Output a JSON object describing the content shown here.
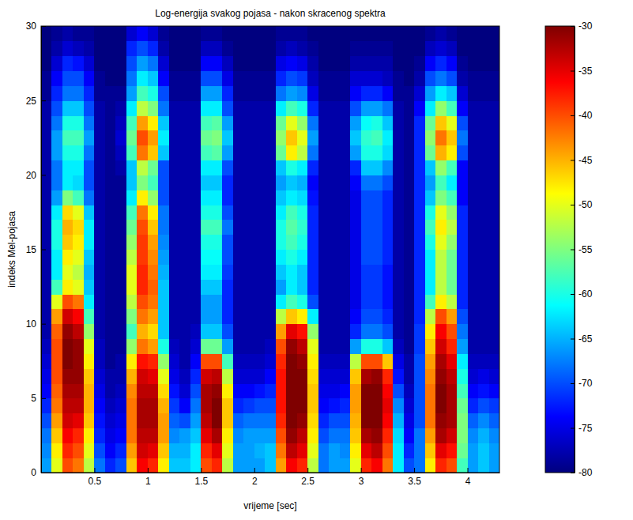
{
  "chart_data": {
    "type": "heatmap",
    "title": "Log-energija svakog pojasa - nakon skracenog spektra",
    "x_label": "vrijeme [sec]",
    "y_label": "indeks Mel-pojasa",
    "xlim": [
      0,
      4.3
    ],
    "ylim": [
      0,
      30
    ],
    "xticks": [
      0.5,
      1,
      1.5,
      2,
      2.5,
      3,
      3.5,
      4
    ],
    "yticks": [
      0,
      5,
      10,
      15,
      20,
      25,
      30
    ],
    "colorbar": {
      "range": [
        -80,
        -30
      ],
      "ticks": [
        -80,
        -75,
        -70,
        -65,
        -60,
        -55,
        -50,
        -45,
        -40,
        -35,
        -30
      ]
    },
    "x": [
      0.05,
      0.15,
      0.25,
      0.35,
      0.45,
      0.55,
      0.65,
      0.75,
      0.85,
      0.95,
      1.05,
      1.15,
      1.25,
      1.35,
      1.45,
      1.55,
      1.65,
      1.75,
      1.85,
      1.95,
      2.05,
      2.15,
      2.25,
      2.35,
      2.45,
      2.55,
      2.65,
      2.75,
      2.85,
      2.95,
      3.05,
      3.15,
      3.25,
      3.35,
      3.45,
      3.55,
      3.65,
      3.75,
      3.85,
      3.95,
      4.05,
      4.15,
      4.25
    ],
    "y": [
      0.5,
      1.5,
      2.5,
      3.5,
      4.5,
      5.5,
      6.5,
      7.5,
      8.5,
      9.5,
      10.5,
      11.5,
      12.5,
      13.5,
      14.5,
      15.5,
      16.5,
      17.5,
      18.5,
      19.5,
      20.5,
      21.5,
      22.5,
      23.5,
      24.5,
      25.5,
      26.5,
      27.5,
      28.5,
      29.5
    ],
    "z": [
      [
        -66,
        -67,
        -68,
        -70,
        -72,
        -74,
        -75,
        -76,
        -77,
        -78,
        -78,
        -78,
        -78,
        -78,
        -78,
        -78,
        -78,
        -78,
        -78,
        -78,
        -78,
        -78,
        -78,
        -78,
        -78,
        -79,
        -79,
        -80,
        -80,
        -80
      ],
      [
        -50,
        -48,
        -46,
        -44,
        -42,
        -41,
        -40,
        -40,
        -40,
        -41,
        -44,
        -50,
        -58,
        -62,
        -62,
        -60,
        -60,
        -62,
        -66,
        -68,
        -68,
        -66,
        -66,
        -68,
        -70,
        -72,
        -74,
        -76,
        -78,
        -79
      ],
      [
        -40,
        -38,
        -36,
        -34,
        -33,
        -32,
        -31,
        -30,
        -30,
        -31,
        -34,
        -40,
        -48,
        -50,
        -48,
        -46,
        -45,
        -47,
        -55,
        -62,
        -62,
        -60,
        -58,
        -60,
        -64,
        -68,
        -70,
        -72,
        -76,
        -78
      ],
      [
        -42,
        -40,
        -38,
        -35,
        -33,
        -32,
        -31,
        -31,
        -31,
        -33,
        -36,
        -42,
        -50,
        -52,
        -50,
        -48,
        -47,
        -50,
        -58,
        -63,
        -62,
        -60,
        -58,
        -60,
        -64,
        -68,
        -70,
        -73,
        -77,
        -79
      ],
      [
        -52,
        -50,
        -48,
        -46,
        -45,
        -45,
        -46,
        -48,
        -50,
        -54,
        -58,
        -62,
        -64,
        -65,
        -64,
        -62,
        -62,
        -64,
        -68,
        -70,
        -70,
        -68,
        -66,
        -68,
        -70,
        -72,
        -74,
        -76,
        -78,
        -79
      ],
      [
        -68,
        -70,
        -72,
        -73,
        -74,
        -75,
        -76,
        -77,
        -77,
        -78,
        -78,
        -78,
        -78,
        -78,
        -78,
        -78,
        -78,
        -78,
        -78,
        -78,
        -78,
        -78,
        -78,
        -78,
        -78,
        -79,
        -79,
        -80,
        -80,
        -80
      ],
      [
        -72,
        -74,
        -75,
        -76,
        -77,
        -78,
        -78,
        -79,
        -79,
        -79,
        -79,
        -79,
        -79,
        -79,
        -79,
        -79,
        -79,
        -79,
        -79,
        -79,
        -79,
        -79,
        -79,
        -79,
        -79,
        -79,
        -80,
        -80,
        -80,
        -80
      ],
      [
        -70,
        -72,
        -74,
        -75,
        -76,
        -77,
        -78,
        -78,
        -79,
        -79,
        -79,
        -79,
        -79,
        -79,
        -79,
        -79,
        -79,
        -79,
        -79,
        -79,
        -78,
        -77,
        -76,
        -77,
        -78,
        -79,
        -80,
        -80,
        -80,
        -80
      ],
      [
        -46,
        -44,
        -42,
        -42,
        -42,
        -43,
        -45,
        -48,
        -54,
        -58,
        -55,
        -52,
        -50,
        -50,
        -52,
        -54,
        -56,
        -58,
        -62,
        -64,
        -64,
        -58,
        -56,
        -58,
        -62,
        -66,
        -68,
        -70,
        -72,
        -76
      ],
      [
        -36,
        -34,
        -33,
        -32,
        -32,
        -33,
        -34,
        -37,
        -42,
        -45,
        -42,
        -40,
        -38,
        -38,
        -39,
        -39,
        -40,
        -42,
        -48,
        -55,
        -52,
        -42,
        -40,
        -44,
        -52,
        -58,
        -62,
        -66,
        -70,
        -74
      ],
      [
        -38,
        -35,
        -33,
        -32,
        -32,
        -33,
        -35,
        -38,
        -44,
        -47,
        -44,
        -42,
        -41,
        -42,
        -43,
        -44,
        -46,
        -48,
        -54,
        -58,
        -56,
        -46,
        -44,
        -48,
        -55,
        -60,
        -64,
        -68,
        -72,
        -76
      ],
      [
        -48,
        -46,
        -44,
        -44,
        -45,
        -47,
        -50,
        -54,
        -60,
        -64,
        -64,
        -64,
        -64,
        -65,
        -66,
        -67,
        -68,
        -68,
        -70,
        -70,
        -70,
        -64,
        -62,
        -64,
        -68,
        -70,
        -74,
        -76,
        -78,
        -79
      ],
      [
        -64,
        -65,
        -67,
        -69,
        -71,
        -73,
        -75,
        -76,
        -77,
        -78,
        -78,
        -78,
        -78,
        -78,
        -78,
        -78,
        -78,
        -78,
        -78,
        -78,
        -78,
        -78,
        -78,
        -78,
        -78,
        -79,
        -79,
        -80,
        -80,
        -80
      ],
      [
        -64,
        -65,
        -66,
        -70,
        -74,
        -76,
        -77,
        -78,
        -78,
        -78,
        -78,
        -78,
        -78,
        -78,
        -78,
        -78,
        -78,
        -78,
        -78,
        -78,
        -78,
        -78,
        -78,
        -78,
        -78,
        -79,
        -79,
        -80,
        -80,
        -80
      ],
      [
        -62,
        -62,
        -64,
        -66,
        -68,
        -70,
        -72,
        -74,
        -76,
        -77,
        -78,
        -78,
        -78,
        -78,
        -78,
        -78,
        -78,
        -78,
        -78,
        -78,
        -78,
        -78,
        -78,
        -78,
        -78,
        -79,
        -79,
        -80,
        -80,
        -80
      ],
      [
        -40,
        -38,
        -35,
        -33,
        -32,
        -32,
        -34,
        -40,
        -56,
        -64,
        -66,
        -66,
        -64,
        -62,
        -61,
        -60,
        -58,
        -60,
        -62,
        -64,
        -62,
        -58,
        -56,
        -58,
        -62,
        -66,
        -70,
        -74,
        -77,
        -79
      ],
      [
        -38,
        -35,
        -32,
        -30,
        -30,
        -31,
        -33,
        -40,
        -56,
        -64,
        -66,
        -66,
        -64,
        -62,
        -61,
        -60,
        -58,
        -60,
        -62,
        -64,
        -62,
        -57,
        -55,
        -57,
        -62,
        -66,
        -70,
        -74,
        -77,
        -79
      ],
      [
        -52,
        -50,
        -48,
        -46,
        -46,
        -48,
        -52,
        -58,
        -66,
        -70,
        -72,
        -72,
        -72,
        -71,
        -70,
        -70,
        -68,
        -70,
        -72,
        -72,
        -70,
        -66,
        -64,
        -66,
        -70,
        -72,
        -75,
        -77,
        -79,
        -80
      ],
      [
        -66,
        -66,
        -67,
        -69,
        -72,
        -74,
        -76,
        -77,
        -78,
        -78,
        -78,
        -78,
        -78,
        -78,
        -78,
        -78,
        -78,
        -78,
        -78,
        -78,
        -78,
        -78,
        -78,
        -78,
        -78,
        -79,
        -79,
        -80,
        -80,
        -80
      ],
      [
        -66,
        -66,
        -66,
        -68,
        -71,
        -74,
        -76,
        -77,
        -78,
        -78,
        -78,
        -78,
        -78,
        -78,
        -78,
        -78,
        -78,
        -78,
        -78,
        -78,
        -78,
        -78,
        -78,
        -78,
        -78,
        -79,
        -79,
        -80,
        -80,
        -80
      ],
      [
        -66,
        -65,
        -66,
        -68,
        -70,
        -73,
        -76,
        -77,
        -78,
        -78,
        -78,
        -78,
        -78,
        -78,
        -78,
        -78,
        -78,
        -78,
        -78,
        -78,
        -78,
        -78,
        -78,
        -78,
        -78,
        -79,
        -79,
        -80,
        -80,
        -80
      ],
      [
        -64,
        -64,
        -66,
        -68,
        -70,
        -72,
        -74,
        -76,
        -77,
        -78,
        -78,
        -78,
        -78,
        -78,
        -78,
        -78,
        -78,
        -78,
        -78,
        -78,
        -78,
        -78,
        -78,
        -78,
        -78,
        -79,
        -79,
        -80,
        -80,
        -80
      ],
      [
        -44,
        -42,
        -40,
        -38,
        -37,
        -37,
        -37,
        -38,
        -40,
        -44,
        -52,
        -62,
        -66,
        -64,
        -62,
        -60,
        -60,
        -62,
        -64,
        -66,
        -64,
        -56,
        -54,
        -56,
        -62,
        -68,
        -72,
        -75,
        -78,
        -79
      ],
      [
        -36,
        -33,
        -31,
        -30,
        -29,
        -29,
        -29,
        -30,
        -31,
        -35,
        -46,
        -58,
        -62,
        -62,
        -60,
        -58,
        -57,
        -58,
        -62,
        -64,
        -60,
        -48,
        -46,
        -50,
        -58,
        -66,
        -70,
        -74,
        -77,
        -79
      ],
      [
        -38,
        -35,
        -33,
        -31,
        -30,
        -30,
        -30,
        -31,
        -33,
        -37,
        -48,
        -60,
        -64,
        -64,
        -62,
        -60,
        -59,
        -60,
        -63,
        -65,
        -62,
        -52,
        -50,
        -54,
        -60,
        -67,
        -71,
        -75,
        -78,
        -79
      ],
      [
        -52,
        -50,
        -48,
        -47,
        -46,
        -46,
        -47,
        -48,
        -50,
        -54,
        -62,
        -70,
        -72,
        -72,
        -72,
        -72,
        -72,
        -72,
        -73,
        -74,
        -72,
        -68,
        -66,
        -68,
        -72,
        -75,
        -77,
        -78,
        -79,
        -80
      ],
      [
        -68,
        -68,
        -70,
        -72,
        -74,
        -75,
        -76,
        -77,
        -78,
        -78,
        -78,
        -78,
        -78,
        -78,
        -78,
        -78,
        -78,
        -78,
        -78,
        -78,
        -78,
        -78,
        -78,
        -78,
        -78,
        -79,
        -79,
        -80,
        -80,
        -80
      ],
      [
        -66,
        -66,
        -68,
        -70,
        -73,
        -75,
        -76,
        -77,
        -78,
        -78,
        -78,
        -78,
        -78,
        -78,
        -78,
        -78,
        -78,
        -78,
        -78,
        -78,
        -78,
        -78,
        -78,
        -78,
        -78,
        -79,
        -79,
        -80,
        -80,
        -80
      ],
      [
        -66,
        -67,
        -68,
        -70,
        -72,
        -74,
        -76,
        -77,
        -78,
        -78,
        -78,
        -78,
        -78,
        -78,
        -78,
        -78,
        -78,
        -78,
        -78,
        -78,
        -78,
        -78,
        -78,
        -78,
        -78,
        -79,
        -79,
        -80,
        -80,
        -80
      ],
      [
        -50,
        -48,
        -46,
        -45,
        -44,
        -44,
        -46,
        -52,
        -66,
        -72,
        -74,
        -75,
        -75,
        -75,
        -75,
        -75,
        -75,
        -75,
        -75,
        -74,
        -72,
        -66,
        -64,
        -66,
        -70,
        -74,
        -76,
        -78,
        -79,
        -80
      ],
      [
        -38,
        -35,
        -32,
        -30,
        -29,
        -30,
        -32,
        -40,
        -60,
        -68,
        -70,
        -71,
        -71,
        -71,
        -70,
        -70,
        -70,
        -70,
        -70,
        -68,
        -64,
        -60,
        -59,
        -61,
        -66,
        -72,
        -76,
        -78,
        -79,
        -80
      ],
      [
        -36,
        -33,
        -31,
        -29,
        -28,
        -29,
        -31,
        -40,
        -60,
        -68,
        -70,
        -71,
        -71,
        -71,
        -70,
        -70,
        -70,
        -70,
        -70,
        -68,
        -64,
        -60,
        -58,
        -60,
        -66,
        -72,
        -76,
        -78,
        -79,
        -80
      ],
      [
        -42,
        -40,
        -38,
        -36,
        -35,
        -36,
        -38,
        -46,
        -64,
        -70,
        -72,
        -73,
        -73,
        -73,
        -72,
        -72,
        -72,
        -72,
        -72,
        -70,
        -67,
        -63,
        -62,
        -64,
        -68,
        -74,
        -77,
        -78,
        -79,
        -80
      ],
      [
        -62,
        -62,
        -63,
        -65,
        -67,
        -70,
        -73,
        -75,
        -77,
        -78,
        -78,
        -78,
        -78,
        -78,
        -78,
        -78,
        -78,
        -78,
        -78,
        -78,
        -78,
        -78,
        -78,
        -78,
        -78,
        -79,
        -79,
        -80,
        -80,
        -80
      ],
      [
        -70,
        -72,
        -74,
        -75,
        -76,
        -77,
        -78,
        -78,
        -79,
        -79,
        -79,
        -79,
        -79,
        -79,
        -79,
        -79,
        -79,
        -79,
        -79,
        -79,
        -79,
        -79,
        -79,
        -79,
        -79,
        -79,
        -80,
        -80,
        -80,
        -80
      ],
      [
        -68,
        -68,
        -68,
        -70,
        -70,
        -70,
        -70,
        -70,
        -71,
        -71,
        -72,
        -72,
        -72,
        -72,
        -72,
        -72,
        -72,
        -72,
        -72,
        -72,
        -72,
        -72,
        -72,
        -72,
        -74,
        -76,
        -78,
        -79,
        -80,
        -80
      ],
      [
        -48,
        -46,
        -44,
        -42,
        -42,
        -42,
        -43,
        -44,
        -46,
        -48,
        -52,
        -58,
        -62,
        -62,
        -62,
        -60,
        -58,
        -60,
        -64,
        -66,
        -64,
        -56,
        -54,
        -56,
        -62,
        -66,
        -70,
        -74,
        -77,
        -79
      ],
      [
        -38,
        -35,
        -32,
        -31,
        -30,
        -30,
        -31,
        -32,
        -34,
        -36,
        -40,
        -48,
        -52,
        -52,
        -52,
        -50,
        -48,
        -50,
        -55,
        -58,
        -54,
        -45,
        -42,
        -46,
        -54,
        -62,
        -68,
        -72,
        -76,
        -78
      ],
      [
        -40,
        -37,
        -34,
        -32,
        -32,
        -32,
        -33,
        -35,
        -38,
        -40,
        -44,
        -52,
        -56,
        -56,
        -56,
        -54,
        -52,
        -54,
        -58,
        -62,
        -58,
        -48,
        -46,
        -50,
        -58,
        -64,
        -70,
        -74,
        -77,
        -79
      ],
      [
        -58,
        -56,
        -55,
        -55,
        -56,
        -58,
        -60,
        -62,
        -66,
        -68,
        -70,
        -72,
        -72,
        -72,
        -72,
        -72,
        -72,
        -72,
        -74,
        -74,
        -74,
        -70,
        -68,
        -70,
        -74,
        -76,
        -78,
        -79,
        -80,
        -80
      ],
      [
        -66,
        -66,
        -67,
        -69,
        -72,
        -74,
        -76,
        -77,
        -78,
        -78,
        -78,
        -78,
        -78,
        -78,
        -78,
        -78,
        -78,
        -78,
        -78,
        -78,
        -78,
        -78,
        -78,
        -78,
        -78,
        -79,
        -79,
        -80,
        -80,
        -80
      ],
      [
        -64,
        -64,
        -65,
        -67,
        -70,
        -73,
        -75,
        -77,
        -78,
        -78,
        -78,
        -78,
        -78,
        -78,
        -78,
        -78,
        -78,
        -78,
        -78,
        -78,
        -78,
        -78,
        -78,
        -78,
        -78,
        -79,
        -79,
        -80,
        -80,
        -80
      ],
      [
        -66,
        -66,
        -67,
        -69,
        -71,
        -74,
        -76,
        -77,
        -78,
        -78,
        -78,
        -78,
        -78,
        -78,
        -78,
        -78,
        -78,
        -78,
        -78,
        -78,
        -78,
        -78,
        -78,
        -78,
        -78,
        -79,
        -79,
        -80,
        -80,
        -80
      ]
    ]
  }
}
